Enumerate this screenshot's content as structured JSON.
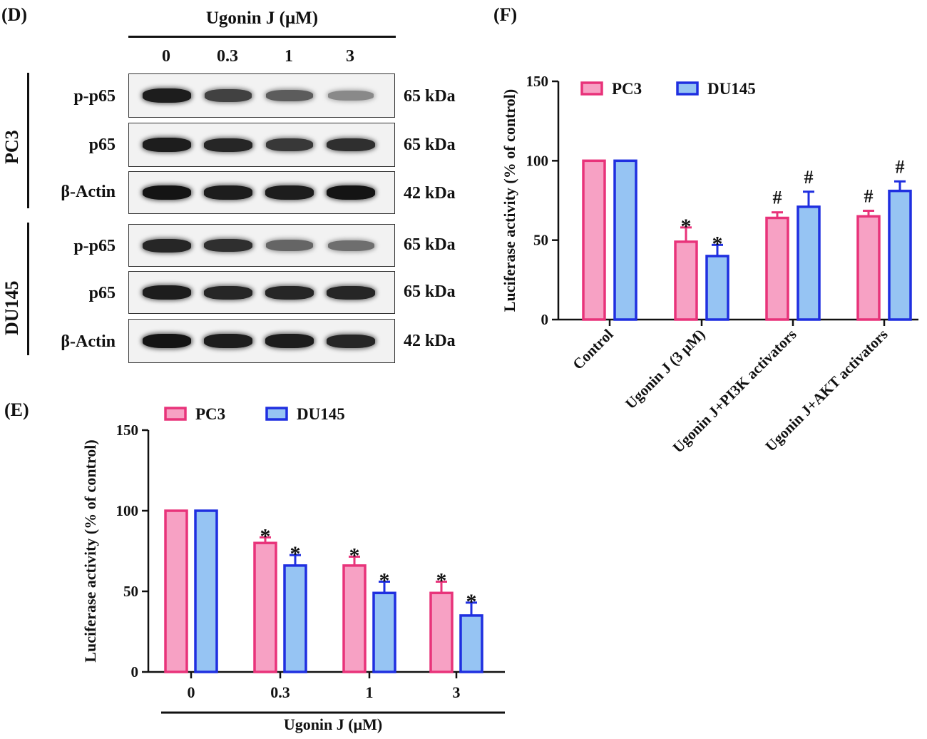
{
  "panel_D": {
    "letter": "(D)",
    "treatment_header": "Ugonin J (μM)",
    "lanes": [
      "0",
      "0.3",
      "1",
      "3"
    ],
    "groups": [
      {
        "cell_line": "PC3",
        "rows": [
          {
            "protein": "p-p65",
            "kda": "65 kDa",
            "intensity": [
              0.95,
              0.75,
              0.6,
              0.35
            ]
          },
          {
            "protein": "p65",
            "kda": "65 kDa",
            "intensity": [
              0.95,
              0.9,
              0.8,
              0.85
            ]
          },
          {
            "protein": "β-Actin",
            "kda": "42 kDa",
            "intensity": [
              1.0,
              0.95,
              0.95,
              1.0
            ]
          }
        ]
      },
      {
        "cell_line": "DU145",
        "rows": [
          {
            "protein": "p-p65",
            "kda": "65 kDa",
            "intensity": [
              0.9,
              0.85,
              0.55,
              0.5
            ]
          },
          {
            "protein": "p65",
            "kda": "65 kDa",
            "intensity": [
              0.95,
              0.9,
              0.9,
              0.9
            ]
          },
          {
            "protein": "β-Actin",
            "kda": "42 kDa",
            "intensity": [
              1.0,
              0.95,
              0.95,
              0.9
            ]
          }
        ]
      }
    ]
  },
  "colors": {
    "pc3_fill": "#f7a1c4",
    "pc3_stroke": "#e8337a",
    "du145_fill": "#96c4f3",
    "du145_stroke": "#1f2fe0",
    "axis": "#111111"
  },
  "chart_data": [
    {
      "panel": "(E)",
      "type": "bar",
      "categories": [
        "0",
        "0.3",
        "1",
        "3"
      ],
      "series": [
        {
          "name": "PC3",
          "values": [
            100,
            80,
            66,
            49
          ],
          "errors": [
            0,
            3.5,
            5.5,
            7
          ],
          "marks": [
            "",
            "*",
            "*",
            "*"
          ]
        },
        {
          "name": "DU145",
          "values": [
            100,
            66,
            49,
            35
          ],
          "errors": [
            0,
            6.5,
            7,
            8
          ],
          "marks": [
            "",
            "*",
            "*",
            "*"
          ]
        }
      ],
      "xlabel": "Ugonin J (μM)",
      "ylabel": "Luciferase activity (% of control)",
      "ylim": [
        0,
        150
      ],
      "yticks": [
        "0",
        "50",
        "100",
        "150"
      ],
      "legend": "top"
    },
    {
      "panel": "(F)",
      "type": "bar",
      "categories": [
        "Control",
        "Ugonin J (3 μM)",
        "Ugonin J+PI3K activators",
        "Ugonin J+AKT activators"
      ],
      "series": [
        {
          "name": "PC3",
          "values": [
            100,
            49,
            64,
            65
          ],
          "errors": [
            0,
            9,
            3.5,
            3.5
          ],
          "marks": [
            "",
            "*",
            "#",
            "#"
          ]
        },
        {
          "name": "DU145",
          "values": [
            100,
            40,
            71,
            81
          ],
          "errors": [
            0,
            7,
            9.5,
            6
          ],
          "marks": [
            "",
            "*",
            "#",
            "#"
          ]
        }
      ],
      "xlabel": "",
      "ylabel": "Luciferase activity (% of control)",
      "ylim": [
        0,
        150
      ],
      "yticks": [
        "0",
        "50",
        "100",
        "150"
      ],
      "legend": "top"
    }
  ]
}
